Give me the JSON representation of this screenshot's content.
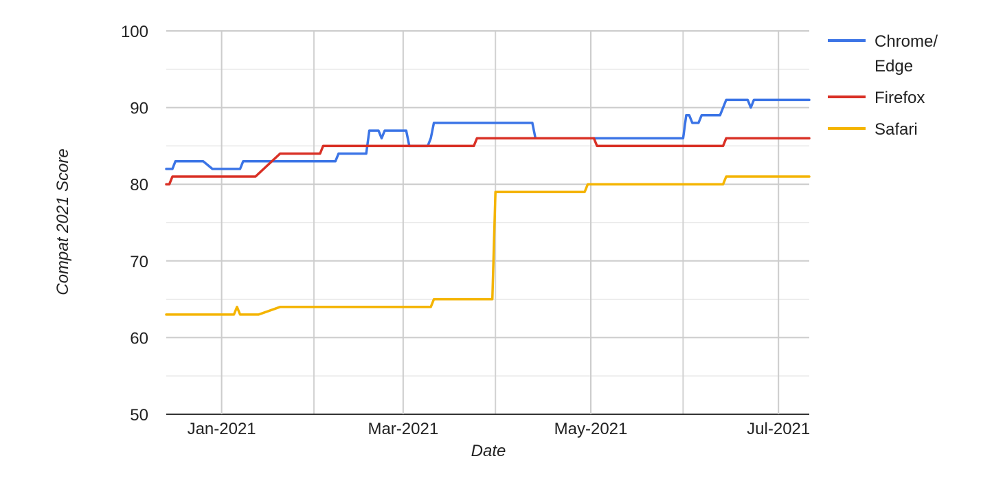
{
  "chart_data": {
    "type": "line",
    "title": "",
    "xlabel": "Date",
    "ylabel": "Compat 2021 Score",
    "xlim": [
      "2020-12-14",
      "2021-07-11"
    ],
    "ylim": [
      50,
      100
    ],
    "y_ticks": [
      50,
      60,
      70,
      80,
      90,
      100
    ],
    "x_ticks": [
      {
        "date": "2021-01-01",
        "label": "Jan-2021"
      },
      {
        "date": "2021-03-01",
        "label": "Mar-2021"
      },
      {
        "date": "2021-05-01",
        "label": "May-2021"
      },
      {
        "date": "2021-07-01",
        "label": "Jul-2021"
      }
    ],
    "x_minor_gridlines": [
      "2021-01-31",
      "2021-03-31",
      "2021-05-31"
    ],
    "y_minor_gridlines": [
      55,
      65,
      75,
      85,
      95
    ],
    "grid": true,
    "legend": "right",
    "series": [
      {
        "name": "Chrome/ Edge",
        "legend_lines": [
          "Chrome/",
          "Edge"
        ],
        "color": "#3b74e6",
        "points": [
          [
            "2020-12-14",
            82
          ],
          [
            "2020-12-16",
            82
          ],
          [
            "2020-12-17",
            83
          ],
          [
            "2020-12-26",
            83
          ],
          [
            "2020-12-29",
            82
          ],
          [
            "2021-01-07",
            82
          ],
          [
            "2021-01-08",
            83
          ],
          [
            "2021-02-07",
            83
          ],
          [
            "2021-02-08",
            84
          ],
          [
            "2021-02-17",
            84
          ],
          [
            "2021-02-18",
            87
          ],
          [
            "2021-02-21",
            87
          ],
          [
            "2021-02-22",
            86
          ],
          [
            "2021-02-23",
            87
          ],
          [
            "2021-03-02",
            87
          ],
          [
            "2021-03-03",
            85
          ],
          [
            "2021-03-09",
            85
          ],
          [
            "2021-03-10",
            86
          ],
          [
            "2021-03-11",
            88
          ],
          [
            "2021-04-12",
            88
          ],
          [
            "2021-04-13",
            86
          ],
          [
            "2021-05-31",
            86
          ],
          [
            "2021-06-01",
            89
          ],
          [
            "2021-06-02",
            89
          ],
          [
            "2021-06-03",
            88
          ],
          [
            "2021-06-05",
            88
          ],
          [
            "2021-06-06",
            89
          ],
          [
            "2021-06-12",
            89
          ],
          [
            "2021-06-14",
            91
          ],
          [
            "2021-06-21",
            91
          ],
          [
            "2021-06-22",
            90
          ],
          [
            "2021-06-23",
            91
          ],
          [
            "2021-07-11",
            91
          ]
        ]
      },
      {
        "name": "Firefox",
        "legend_lines": [
          "Firefox"
        ],
        "color": "#d93025",
        "points": [
          [
            "2020-12-14",
            80
          ],
          [
            "2020-12-15",
            80
          ],
          [
            "2020-12-16",
            81
          ],
          [
            "2021-01-12",
            81
          ],
          [
            "2021-01-20",
            84
          ],
          [
            "2021-02-02",
            84
          ],
          [
            "2021-02-03",
            85
          ],
          [
            "2021-03-24",
            85
          ],
          [
            "2021-03-25",
            86
          ],
          [
            "2021-05-02",
            86
          ],
          [
            "2021-05-03",
            85
          ],
          [
            "2021-06-13",
            85
          ],
          [
            "2021-06-14",
            86
          ],
          [
            "2021-07-11",
            86
          ]
        ]
      },
      {
        "name": "Safari",
        "legend_lines": [
          "Safari"
        ],
        "color": "#f4b400",
        "points": [
          [
            "2020-12-14",
            63
          ],
          [
            "2021-01-05",
            63
          ],
          [
            "2021-01-06",
            64
          ],
          [
            "2021-01-07",
            63
          ],
          [
            "2021-01-13",
            63
          ],
          [
            "2021-01-20",
            64
          ],
          [
            "2021-03-10",
            64
          ],
          [
            "2021-03-11",
            65
          ],
          [
            "2021-03-30",
            65
          ],
          [
            "2021-03-31",
            79
          ],
          [
            "2021-04-29",
            79
          ],
          [
            "2021-04-30",
            80
          ],
          [
            "2021-06-13",
            80
          ],
          [
            "2021-06-14",
            81
          ],
          [
            "2021-07-11",
            81
          ]
        ]
      }
    ]
  }
}
